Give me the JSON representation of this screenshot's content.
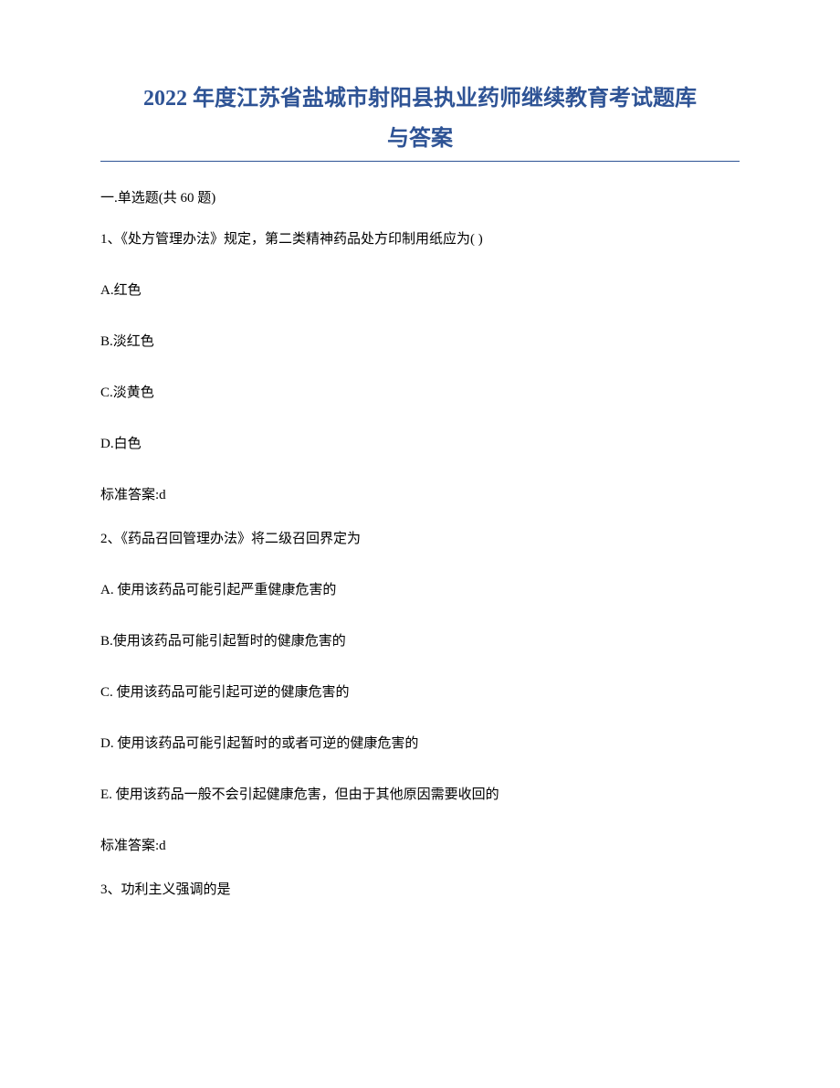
{
  "title": {
    "line1": "2022 年度江苏省盐城市射阳县执业药师继续教育考试题库",
    "line2": "与答案"
  },
  "section_header": "一.单选题(共 60 题)",
  "questions": [
    {
      "number": "1、",
      "text": "《处方管理办法》规定，第二类精神药品处方印制用纸应为( )",
      "options": [
        "A.红色",
        "B.淡红色",
        "C.淡黄色",
        "D.白色"
      ],
      "answer": "标准答案:d"
    },
    {
      "number": "2、",
      "text": "《药品召回管理办法》将二级召回界定为",
      "options": [
        "A. 使用该药品可能引起严重健康危害的",
        "B.使用该药品可能引起暂时的健康危害的",
        "C. 使用该药品可能引起可逆的健康危害的",
        "D. 使用该药品可能引起暂时的或者可逆的健康危害的",
        "E. 使用该药品一般不会引起健康危害，但由于其他原因需要收回的"
      ],
      "answer": "标准答案:d"
    },
    {
      "number": "3、",
      "text": "功利主义强调的是",
      "options": [],
      "answer": ""
    }
  ]
}
